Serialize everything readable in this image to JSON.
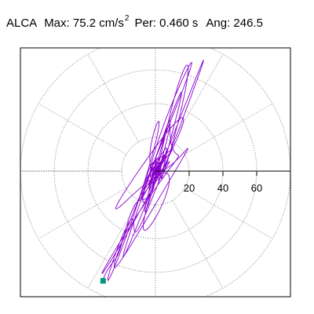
{
  "header": {
    "station": "ALCA",
    "max_label": "Max:",
    "max_value": "75.2 cm/s",
    "max_exponent": "2",
    "per_label": "Per:",
    "per_value": "0.460 s",
    "ang_label": "Ang:",
    "ang_value": "246.5"
  },
  "colors": {
    "trace": "#8a00cc",
    "endpoint_marker": "#009977",
    "grid": "#808080",
    "axis": "#000000"
  },
  "chart_data": {
    "type": "polar-particle-motion",
    "title": "",
    "radial_rings": [
      20,
      40,
      60,
      80
    ],
    "axis_ticks": [
      20,
      40,
      60
    ],
    "axis_tick_labels": [
      "20",
      "40",
      "60"
    ],
    "spokes_deg": [
      0,
      30,
      60,
      90,
      120,
      150,
      180,
      210,
      240,
      270,
      300,
      330
    ],
    "grid": true,
    "principal_axis_deg": 246.5,
    "max_amplitude": 75.2,
    "endpoint": {
      "x": -31,
      "y": -65
    }
  }
}
